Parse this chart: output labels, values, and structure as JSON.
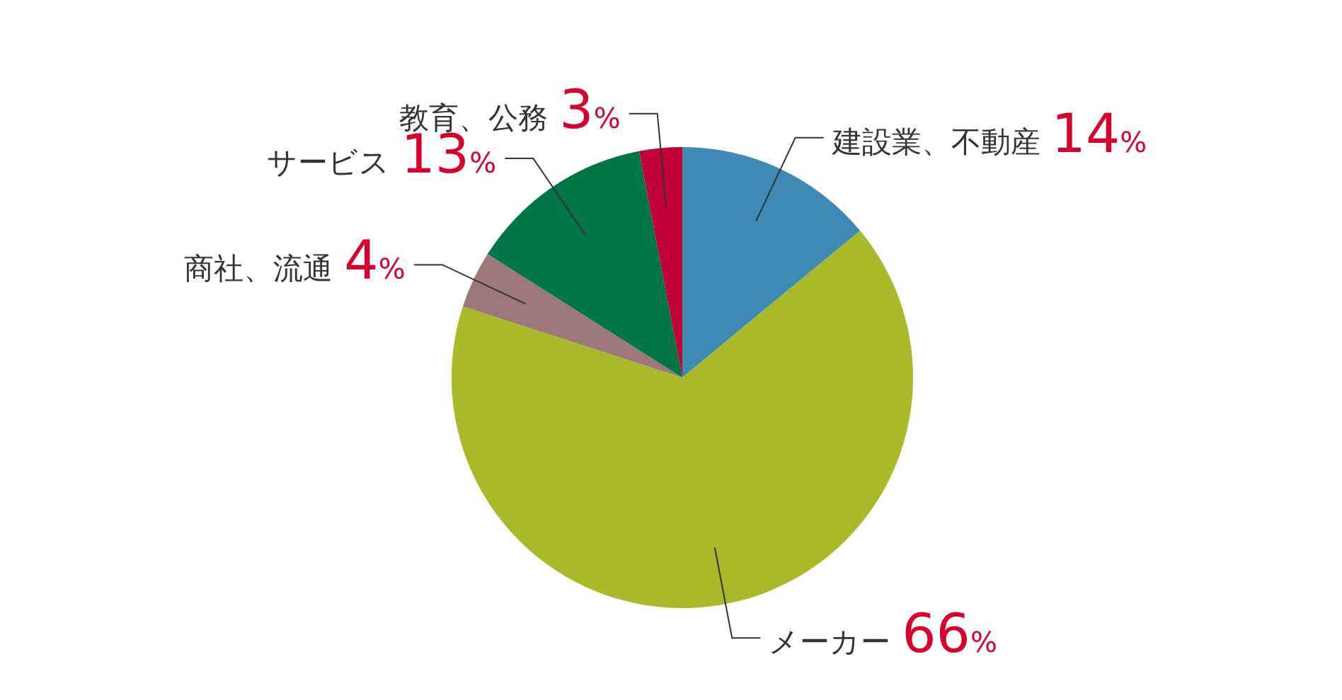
{
  "chart_data": {
    "type": "pie",
    "categories": [
      "建設業、不動産",
      "メーカー",
      "商社、流通",
      "サービス",
      "教育、公務"
    ],
    "values": [
      14,
      66,
      4,
      13,
      3
    ],
    "colors": [
      "#3f8ab5",
      "#a8b92a",
      "#9c777b",
      "#007548",
      "#c00038"
    ],
    "value_labels": [
      "14%",
      "66%",
      "4%",
      "13%",
      "3%"
    ]
  }
}
